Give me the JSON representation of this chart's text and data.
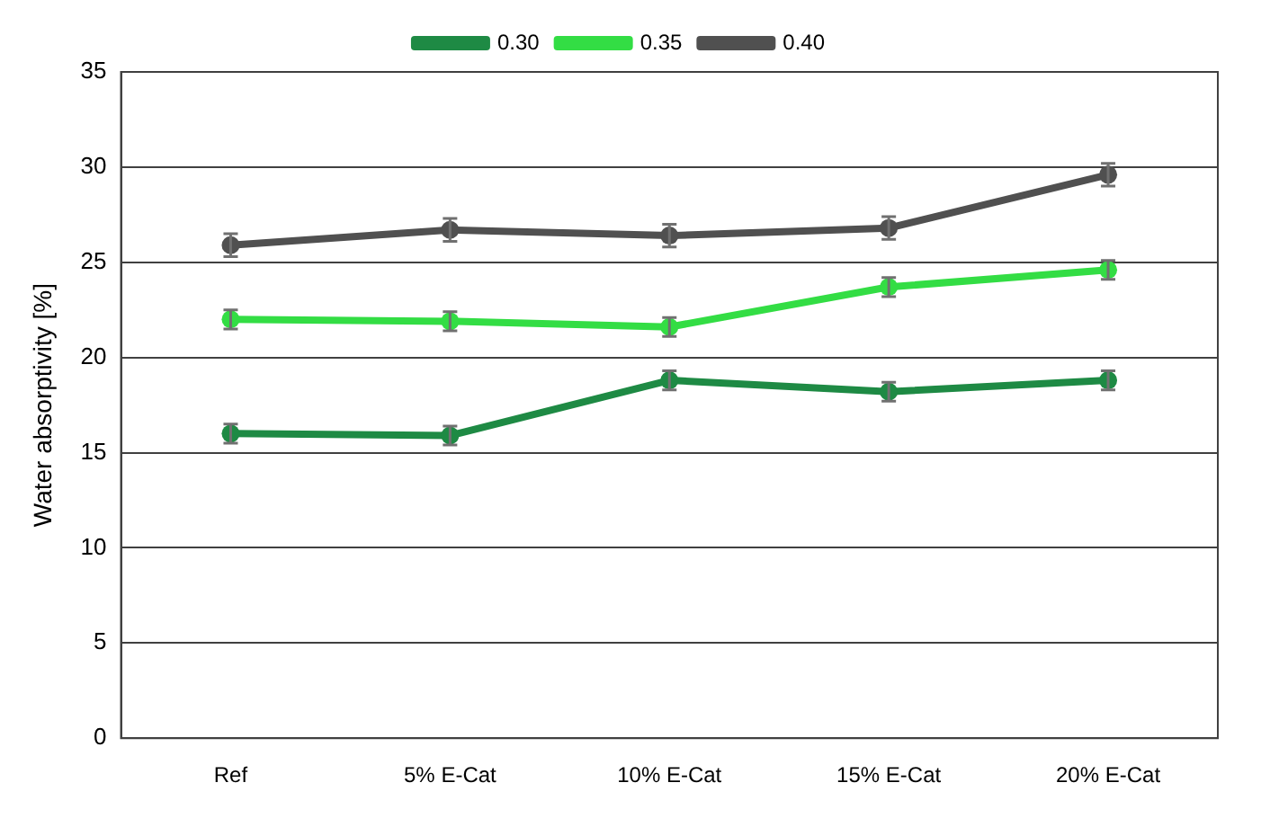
{
  "chart_data": {
    "type": "line",
    "ylabel": "Water absorptivity [%]",
    "categories": [
      "Ref",
      "5% E-Cat",
      "10% E-Cat",
      "15% E-Cat",
      "20% E-Cat"
    ],
    "series": [
      {
        "name": "0.30",
        "color": "#1e8a44",
        "values": [
          16.0,
          15.9,
          18.8,
          18.2,
          18.8
        ],
        "errors": [
          0.5,
          0.5,
          0.5,
          0.5,
          0.5
        ]
      },
      {
        "name": "0.35",
        "color": "#33dd44",
        "values": [
          22.0,
          21.9,
          21.6,
          23.7,
          24.6
        ],
        "errors": [
          0.5,
          0.5,
          0.5,
          0.5,
          0.5
        ]
      },
      {
        "name": "0.40",
        "color": "#505050",
        "values": [
          25.9,
          26.7,
          26.4,
          26.8,
          29.6
        ],
        "errors": [
          0.6,
          0.6,
          0.6,
          0.6,
          0.6
        ]
      }
    ],
    "ylim": [
      0,
      35
    ],
    "yticks": [
      0,
      5,
      10,
      15,
      20,
      25,
      30,
      35
    ],
    "grid": "y",
    "legend": "top",
    "marker": "circle",
    "line_style": "solid"
  }
}
